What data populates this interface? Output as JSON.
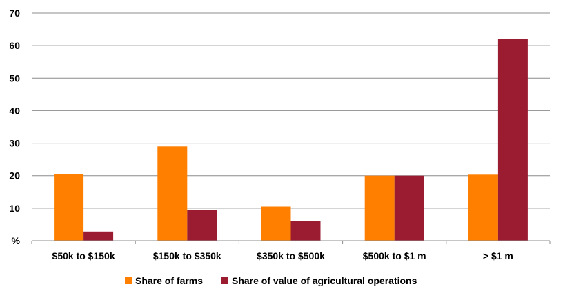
{
  "chart_data": {
    "type": "bar",
    "categories": [
      "$50k to $150k",
      "$150k to $350k",
      "$350k to $500k",
      "$500k to $1 m",
      "> $1 m"
    ],
    "series": [
      {
        "name": "Share of farms",
        "values": [
          20.5,
          29,
          10.5,
          20,
          20.3
        ],
        "color": "#FF7F00"
      },
      {
        "name": "Share of value of agricultural operations",
        "values": [
          2.8,
          9.5,
          6,
          20,
          62
        ],
        "color": "#9B1B30"
      }
    ],
    "y_ticks": [
      "%",
      "10",
      "20",
      "30",
      "40",
      "50",
      "60",
      "70"
    ],
    "ylim": [
      0,
      70
    ],
    "grid": true,
    "legend_position": "bottom"
  }
}
